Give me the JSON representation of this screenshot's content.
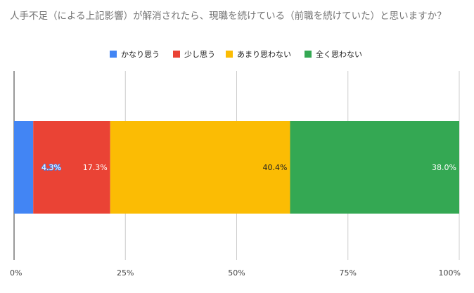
{
  "chart_data": {
    "type": "bar",
    "orientation": "horizontal",
    "stacked": true,
    "percent_stacked": true,
    "title": "人手不足（による上記影響）が解消されたら、現職を続けている（前職を続けていた）と思いますか？",
    "series": [
      {
        "name": "かなり思う",
        "values": [
          4.3
        ],
        "color": "#4285F4",
        "label": "4.3%"
      },
      {
        "name": "少し思う",
        "values": [
          17.3
        ],
        "color": "#EA4335",
        "label": "17.3%"
      },
      {
        "name": "あまり思わない",
        "values": [
          40.4
        ],
        "color": "#FBBC04",
        "label": "40.4%"
      },
      {
        "name": "全く思わない",
        "values": [
          38.0
        ],
        "color": "#34A853",
        "label": "38.0%"
      }
    ],
    "xlim": [
      0,
      100
    ],
    "xticks": [
      "0%",
      "25%",
      "50%",
      "75%",
      "100%"
    ],
    "grid": true,
    "legend_position": "top-center"
  }
}
